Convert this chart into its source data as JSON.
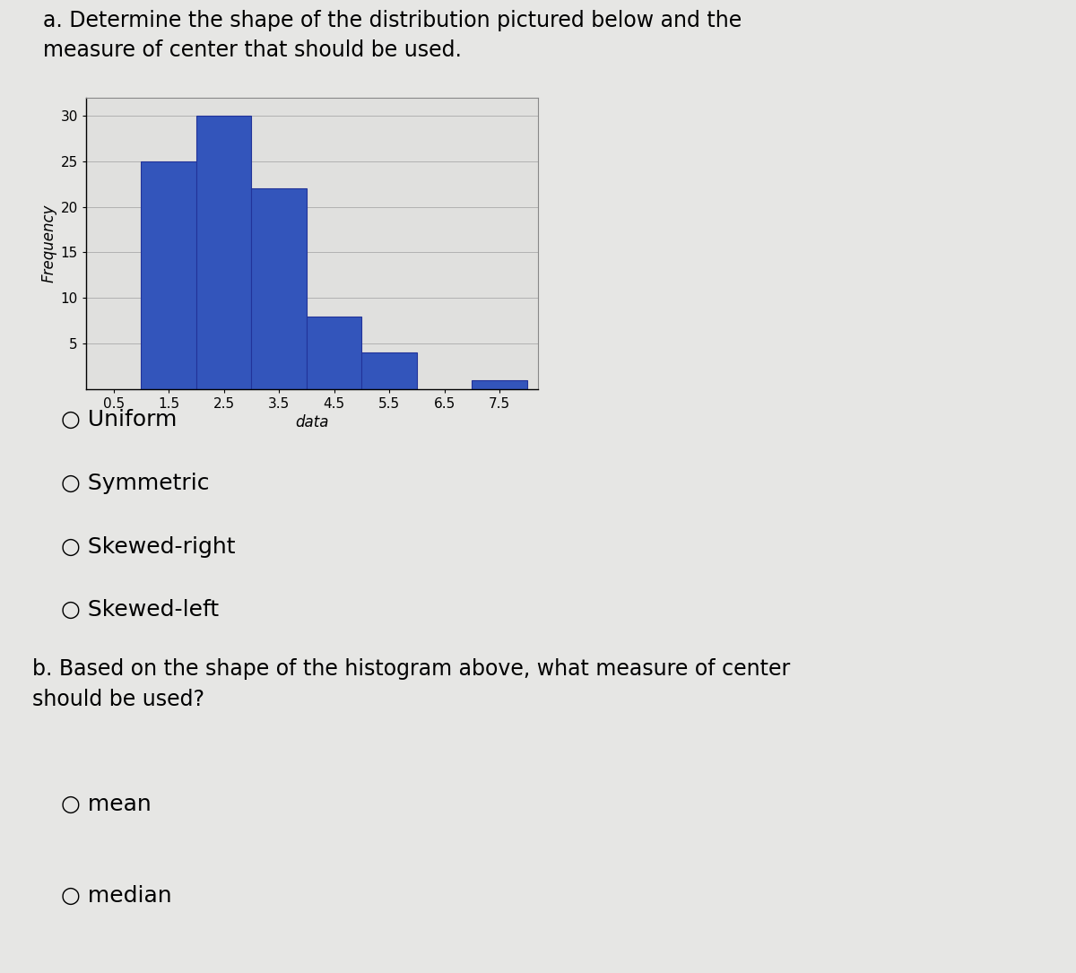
{
  "title_a": "a. Determine the shape of the distribution pictured below and the\nmeasure of center that should be used.",
  "bar_centers": [
    1.5,
    2.5,
    3.5,
    4.5,
    5.5,
    7.5
  ],
  "bar_heights": [
    25,
    30,
    22,
    8,
    4,
    1
  ],
  "bar_width": 1.0,
  "bar_color": "#3355bb",
  "bar_edge_color": "#223399",
  "xlabel": "data",
  "ylabel": "Frequency",
  "xticks": [
    0.5,
    1.5,
    2.5,
    3.5,
    4.5,
    5.5,
    6.5,
    7.5
  ],
  "yticks": [
    5,
    10,
    15,
    20,
    25,
    30
  ],
  "ylim": [
    0,
    32
  ],
  "xlim": [
    0.0,
    8.2
  ],
  "bg_color": "#e6e6e4",
  "plot_bg_color": "#e0e0de",
  "options_a": [
    "○ Uniform",
    "○ Symmetric",
    "○ Skewed-right",
    "○ Skewed-left"
  ],
  "title_b": "b. Based on the shape of the histogram above, what measure of center\nshould be used?",
  "options_b": [
    "○ mean",
    "○ median"
  ],
  "title_fontsize": 17,
  "axis_label_fontsize": 12,
  "tick_fontsize": 11,
  "option_fontsize": 18,
  "title_b_fontsize": 17
}
